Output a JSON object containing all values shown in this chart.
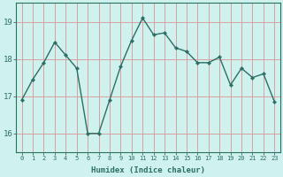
{
  "x": [
    0,
    1,
    2,
    3,
    4,
    5,
    6,
    7,
    8,
    9,
    10,
    11,
    12,
    13,
    14,
    15,
    16,
    17,
    18,
    19,
    20,
    21,
    22,
    23
  ],
  "y": [
    16.9,
    17.45,
    17.9,
    18.45,
    18.1,
    17.75,
    16.0,
    16.0,
    16.9,
    17.8,
    18.5,
    19.1,
    18.65,
    18.7,
    18.3,
    18.2,
    17.9,
    17.9,
    18.05,
    17.3,
    17.75,
    17.5,
    17.6,
    16.85
  ],
  "line_color": "#2d6e65",
  "marker": "D",
  "marker_size": 2.2,
  "bg_color": "#cff2ee",
  "grid_color": "#d9a0a0",
  "axis_color": "#2d6e65",
  "xlabel": "Humidex (Indice chaleur)",
  "xlim": [
    -0.5,
    23.5
  ],
  "ylim": [
    15.5,
    19.5
  ],
  "yticks": [
    16,
    17,
    18,
    19
  ],
  "xtick_labels": [
    "0",
    "1",
    "2",
    "3",
    "4",
    "5",
    "6",
    "7",
    "8",
    "9",
    "10",
    "11",
    "12",
    "13",
    "14",
    "15",
    "16",
    "17",
    "18",
    "19",
    "20",
    "21",
    "22",
    "23"
  ]
}
